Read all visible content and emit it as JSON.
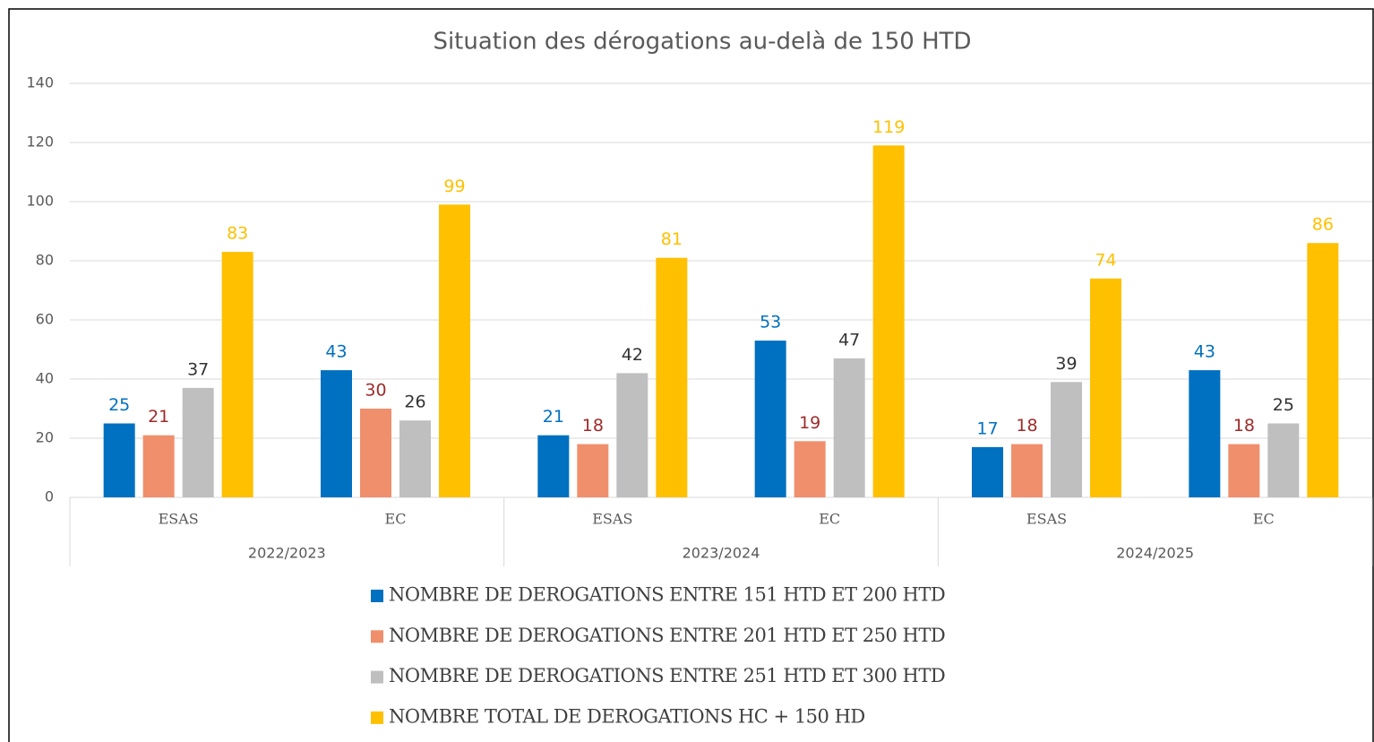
{
  "chart_data": {
    "type": "bar",
    "title": "Situation des dérogations au-delà de 150 HTD",
    "categories": [
      "ESAS",
      "EC",
      "ESAS",
      "EC",
      "ESAS",
      "EC"
    ],
    "category_groups": [
      "2022/2023",
      "2023/2024",
      "2024/2025"
    ],
    "series": [
      {
        "name": "NOMBRE DE DEROGATIONS ENTRE 151 HTD ET 200 HTD",
        "color": "#0070c0",
        "label_color": "#0070c0",
        "values": [
          25,
          43,
          21,
          53,
          17,
          43
        ]
      },
      {
        "name": "NOMBRE DE DEROGATIONS ENTRE 201 HTD ET 250 HTD",
        "color": "#f08f6c",
        "label_color": "#9e2a2a",
        "values": [
          21,
          30,
          18,
          19,
          18,
          18
        ]
      },
      {
        "name": "NOMBRE DE DEROGATIONS ENTRE 251 HTD ET 300 HTD",
        "color": "#bfbfbf",
        "label_color": "#333333",
        "values": [
          37,
          26,
          42,
          47,
          39,
          25
        ]
      },
      {
        "name": "NOMBRE TOTAL DE DEROGATIONS HC + 150 HD",
        "color": "#ffc000",
        "label_color": "#ffc000",
        "values": [
          83,
          99,
          81,
          119,
          74,
          86
        ]
      }
    ],
    "ylim": [
      0,
      140
    ],
    "yticks": [
      0,
      20,
      40,
      60,
      80,
      100,
      120,
      140
    ],
    "grid": true,
    "legend": "bottom"
  }
}
